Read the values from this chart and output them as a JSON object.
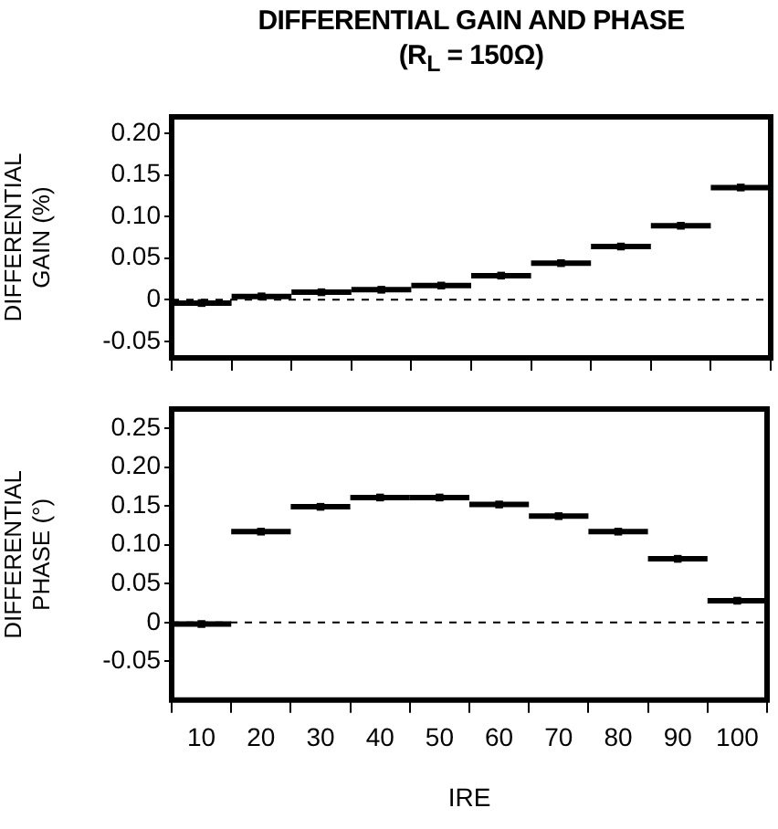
{
  "chart_data": [
    {
      "type": "scatter",
      "title": "DIFFERENTIAL GAIN AND PHASE",
      "subtitle": "(R$_{L}$ = 150Ω)",
      "ylabel": "DIFFERENTIAL GAIN (%)",
      "marker": "square",
      "x": [
        10,
        20,
        30,
        40,
        50,
        60,
        70,
        80,
        90,
        100
      ],
      "series": [
        {
          "color": "#000000",
          "values": [
            -0.004,
            0.004,
            0.009,
            0.012,
            0.017,
            0.029,
            0.044,
            0.064,
            0.089,
            0.135
          ],
          "xerrors": [
            5,
            5,
            5,
            5,
            5,
            5,
            5,
            5,
            5,
            5
          ]
        }
      ],
      "xlim": [
        5,
        105
      ],
      "xticks": [
        {
          "value": 5,
          "label": null
        },
        10,
        {
          "value": 15,
          "label": null
        },
        20,
        {
          "value": 25,
          "label": null
        },
        30,
        {
          "value": 35,
          "label": null
        },
        40,
        {
          "value": 45,
          "label": null
        },
        50,
        {
          "value": 55,
          "label": null
        },
        60,
        {
          "value": 65,
          "label": null
        },
        70,
        {
          "value": 75,
          "label": null
        },
        80,
        {
          "value": 85,
          "label": null
        },
        90,
        {
          "value": 95,
          "label": null
        },
        100,
        {
          "value": 105,
          "label": null
        }
      ],
      "ylim": [
        -0.07,
        0.22
      ],
      "yticks": [
        {
          "value": -0.05,
          "label": "-0.05"
        },
        0,
        {
          "value": 0.05,
          "label": "0.05"
        },
        {
          "value": 0.1,
          "label": "0.10"
        },
        {
          "value": 0.15,
          "label": "0.15"
        },
        {
          "value": 0.2,
          "label": "0.20"
        }
      ],
      "ref_lines": [
        {
          "axis": "y",
          "value": 0,
          "label": null,
          "line_style": "dashed"
        }
      ],
      "tick_labels": "y"
    },
    {
      "type": "scatter",
      "xlabel": "IRE",
      "ylabel": "DIFFERENTIAL PHASE (°)",
      "marker": "square",
      "x": [
        10,
        20,
        30,
        40,
        50,
        60,
        70,
        80,
        90,
        100
      ],
      "series": [
        {
          "color": "#000000",
          "values": [
            -0.002,
            0.117,
            0.149,
            0.161,
            0.161,
            0.152,
            0.137,
            0.117,
            0.082,
            0.028
          ],
          "xerrors": [
            5,
            5,
            5,
            5,
            5,
            5,
            5,
            5,
            5,
            5
          ]
        }
      ],
      "xlim": [
        5,
        105
      ],
      "xticks": [
        {
          "value": 5,
          "label": null
        },
        10,
        {
          "value": 15,
          "label": null
        },
        20,
        {
          "value": 25,
          "label": null
        },
        30,
        {
          "value": 35,
          "label": null
        },
        40,
        {
          "value": 45,
          "label": null
        },
        50,
        {
          "value": 55,
          "label": null
        },
        60,
        {
          "value": 65,
          "label": null
        },
        70,
        {
          "value": 75,
          "label": null
        },
        80,
        {
          "value": 85,
          "label": null
        },
        90,
        {
          "value": 95,
          "label": null
        },
        100,
        {
          "value": 105,
          "label": null
        }
      ],
      "ylim": [
        -0.1,
        0.275
      ],
      "yticks": [
        {
          "value": -0.05,
          "label": "-0.05"
        },
        0,
        {
          "value": 0.05,
          "label": "0.05"
        },
        {
          "value": 0.1,
          "label": "0.10"
        },
        {
          "value": 0.15,
          "label": "0.15"
        },
        {
          "value": 0.2,
          "label": "0.20"
        },
        {
          "value": 0.25,
          "label": "0.25"
        }
      ],
      "ref_lines": [
        {
          "axis": "y",
          "value": 0,
          "label": null,
          "line_style": "dashed"
        }
      ]
    }
  ]
}
